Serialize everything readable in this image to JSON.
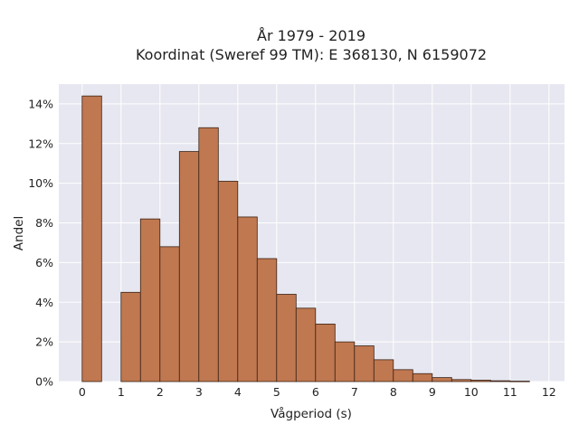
{
  "chart_data": {
    "type": "bar",
    "title_line1": "År 1979 - 2019",
    "title_line2": "Koordinat (Sweref 99 TM): E 368130, N 6159072",
    "xlabel": "Vågperiod (s)",
    "ylabel": "Andel",
    "xlim": [
      -0.6,
      12.4
    ],
    "ylim": [
      0,
      0.15
    ],
    "x_ticks": [
      0,
      1,
      2,
      3,
      4,
      5,
      6,
      7,
      8,
      9,
      10,
      11,
      12
    ],
    "x_tick_labels": [
      "0",
      "1",
      "2",
      "3",
      "4",
      "5",
      "6",
      "7",
      "8",
      "9",
      "10",
      "11",
      "12"
    ],
    "y_ticks": [
      0,
      0.02,
      0.04,
      0.06,
      0.08,
      0.1,
      0.12,
      0.14
    ],
    "y_tick_labels": [
      "0%",
      "2%",
      "4%",
      "6%",
      "8%",
      "10%",
      "12%",
      "14%"
    ],
    "bin_width": 0.5,
    "bins": [
      {
        "x": 0.0,
        "value": 0.144
      },
      {
        "x": 1.0,
        "value": 0.045
      },
      {
        "x": 1.5,
        "value": 0.082
      },
      {
        "x": 2.0,
        "value": 0.068
      },
      {
        "x": 2.5,
        "value": 0.116
      },
      {
        "x": 3.0,
        "value": 0.128
      },
      {
        "x": 3.5,
        "value": 0.101
      },
      {
        "x": 4.0,
        "value": 0.083
      },
      {
        "x": 4.5,
        "value": 0.062
      },
      {
        "x": 5.0,
        "value": 0.044
      },
      {
        "x": 5.5,
        "value": 0.037
      },
      {
        "x": 6.0,
        "value": 0.029
      },
      {
        "x": 6.5,
        "value": 0.02
      },
      {
        "x": 7.0,
        "value": 0.018
      },
      {
        "x": 7.5,
        "value": 0.011
      },
      {
        "x": 8.0,
        "value": 0.006
      },
      {
        "x": 8.5,
        "value": 0.004
      },
      {
        "x": 9.0,
        "value": 0.002
      },
      {
        "x": 9.5,
        "value": 0.001
      },
      {
        "x": 10.0,
        "value": 0.0007
      },
      {
        "x": 10.5,
        "value": 0.0004
      },
      {
        "x": 11.0,
        "value": 0.0002
      }
    ],
    "grid": true,
    "colors": {
      "bar_fill": "#c07850",
      "bar_edge": "#3a2216",
      "plot_background": "#e6e7f0",
      "grid": "#ffffff"
    }
  }
}
